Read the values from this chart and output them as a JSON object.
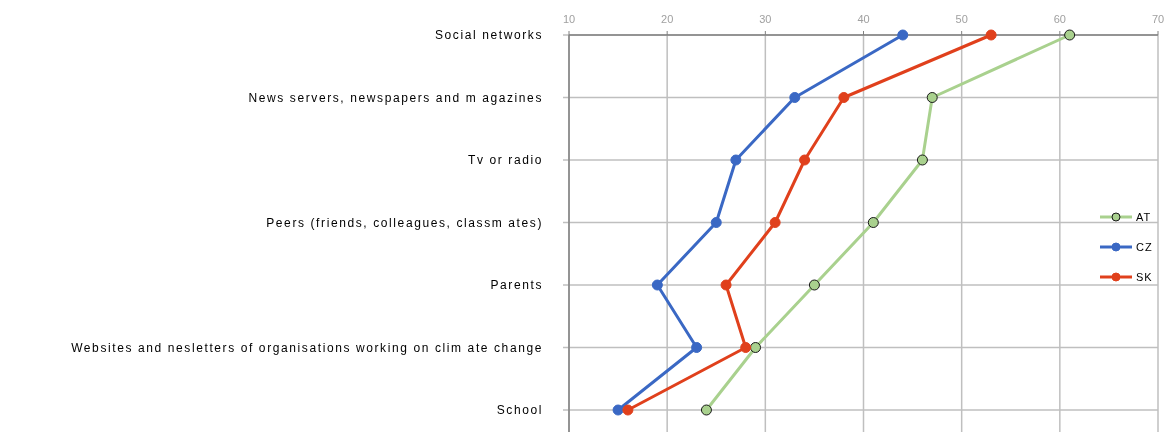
{
  "chart_data": {
    "type": "line",
    "orientation": "horizontal",
    "categories": [
      "Social networks",
      "News servers, newspapers and m agazines",
      "Tv or radio",
      "Peers (friends, colleagues, classm ates)",
      "Parents",
      "Websites and nesletters of organisations working on clim ate change",
      "School"
    ],
    "series": [
      {
        "name": "AT",
        "color": "#a9d18e",
        "values": [
          61,
          47,
          46,
          41,
          35,
          29,
          24
        ]
      },
      {
        "name": "CZ",
        "color": "#3a68c4",
        "values": [
          44,
          33,
          27,
          25,
          19,
          23,
          15
        ]
      },
      {
        "name": "SK",
        "color": "#e0401c",
        "values": [
          53,
          38,
          34,
          31,
          26,
          28,
          16
        ]
      }
    ],
    "xlim": [
      10,
      70
    ],
    "xticks": [
      10,
      20,
      30,
      40,
      50,
      60,
      70
    ],
    "grid": true,
    "legend": "right",
    "marker": "circle",
    "line_style": "solid"
  }
}
